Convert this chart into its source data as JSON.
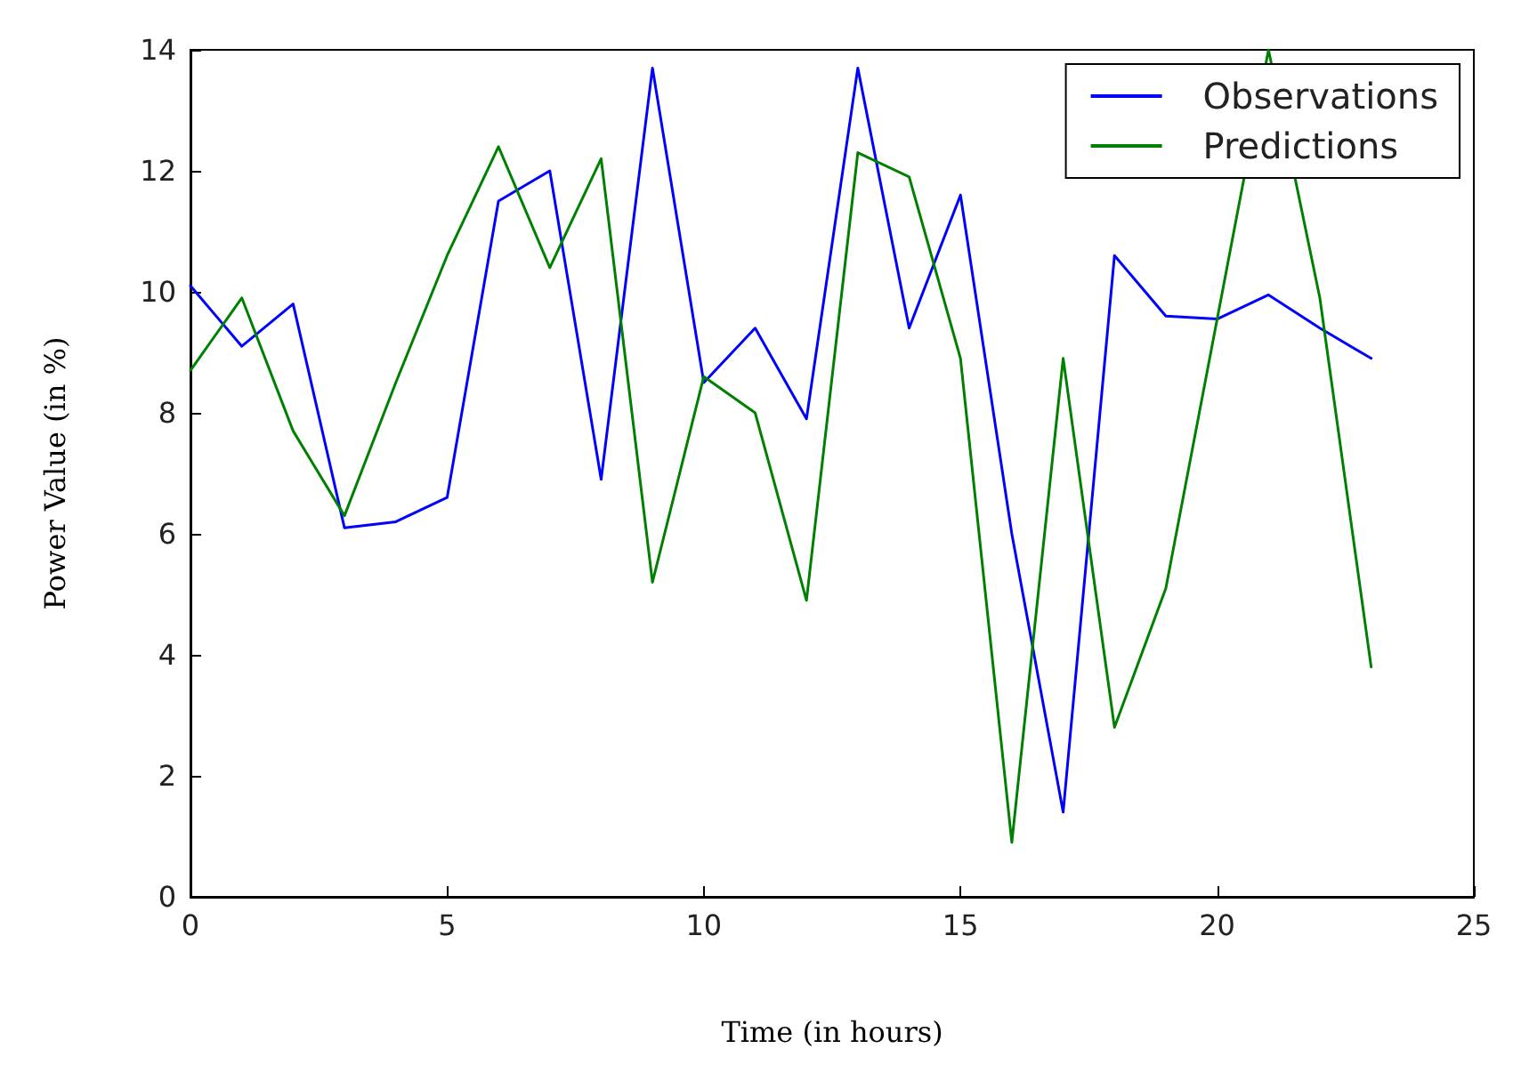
{
  "chart_data": {
    "type": "line",
    "xlabel": "Time (in hours)",
    "ylabel": "Power Value (in %)",
    "x": [
      0,
      1,
      2,
      3,
      4,
      5,
      6,
      7,
      8,
      9,
      10,
      11,
      12,
      13,
      14,
      15,
      16,
      17,
      18,
      19,
      20,
      21,
      22,
      23
    ],
    "series": [
      {
        "name": "Observations",
        "color": "#0000ff",
        "values": [
          10.1,
          9.1,
          9.8,
          6.1,
          6.2,
          6.6,
          11.5,
          12.0,
          6.9,
          13.7,
          8.5,
          9.4,
          7.9,
          13.7,
          9.4,
          11.6,
          6.0,
          1.4,
          10.6,
          9.6,
          9.55,
          9.95,
          9.4,
          8.9
        ]
      },
      {
        "name": "Predictions",
        "color": "#008000",
        "values": [
          8.7,
          9.9,
          7.7,
          6.3,
          8.5,
          10.6,
          12.4,
          10.4,
          12.2,
          5.2,
          8.6,
          8.0,
          4.9,
          12.3,
          11.9,
          8.9,
          0.9,
          8.9,
          2.8,
          5.1,
          null,
          14.0,
          9.9,
          3.8
        ]
      }
    ],
    "xlim": [
      0,
      25
    ],
    "xticks": [
      0,
      5,
      10,
      15,
      20,
      25
    ],
    "ylim": [
      0,
      14
    ],
    "yticks": [
      0,
      2,
      4,
      6,
      8,
      10,
      12,
      14
    ],
    "grid": false,
    "legend": "top right",
    "marker": "none",
    "line_style": "solid"
  }
}
